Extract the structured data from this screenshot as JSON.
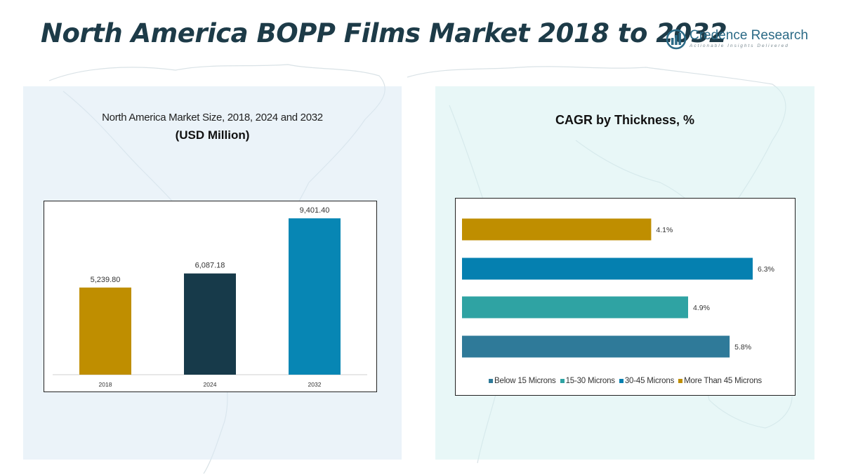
{
  "page": {
    "title": "North America BOPP Films Market 2018 to 2032"
  },
  "logo": {
    "name": "Credence Research",
    "tagline": "Actionable Insights Delivered"
  },
  "colors": {
    "title": "#1d3b48",
    "bar_2018": "#bf8e00",
    "bar_2024": "#173a4a",
    "bar_2032": "#0786b4",
    "below_15": "#2f7a99",
    "15_30": "#2fa3a3",
    "30_45": "#0580b0",
    "more_45": "#bf8e00"
  },
  "chart_data": [
    {
      "type": "bar",
      "title": "North America Market Size, 2018, 2024 and 2032",
      "subtitle": "(USD Million)",
      "categories": [
        "2018",
        "2024",
        "2032"
      ],
      "values": [
        5239.8,
        6087.18,
        9401.4
      ],
      "value_labels": [
        "5,239.80",
        "6,087.18",
        "9,401.40"
      ],
      "ylim": [
        0,
        10000
      ],
      "grid": false
    },
    {
      "type": "bar",
      "orientation": "horizontal",
      "title": "CAGR by Thickness, %",
      "categories": [
        "Below 15 Microns",
        "15-30 Microns",
        "30-45 Microns",
        "More Than 45 Microns"
      ],
      "values": [
        5.8,
        4.9,
        6.3,
        4.1
      ],
      "value_labels": [
        "5.8%",
        "4.9%",
        "6.3%",
        "4.1%"
      ],
      "legend_position": "bottom",
      "xlim": [
        0,
        7
      ],
      "grid": false
    }
  ]
}
